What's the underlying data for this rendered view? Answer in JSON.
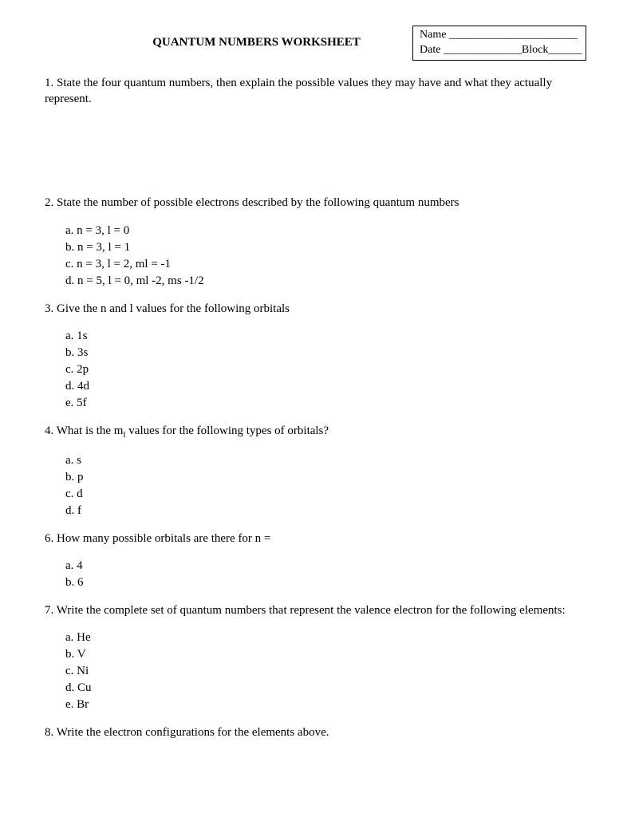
{
  "header": {
    "title": "QUANTUM NUMBERS WORKSHEET",
    "name_label": "Name _______________________",
    "date_label": "Date ______________Block______"
  },
  "q1": {
    "text": "1. State the four quantum numbers, then explain the possible values they may have and what they actually represent."
  },
  "q2": {
    "text": "2. State  the number of possible electrons described by the following quantum numbers",
    "a": "a. n = 3, l = 0",
    "b": "b. n = 3, l = 1",
    "c": "c. n = 3, l = 2, ml = -1",
    "d": "d. n = 5, l = 0, ml -2, ms -1/2"
  },
  "q3": {
    "text": "3. Give the n and l values for the following orbitals",
    "a": "a. 1s",
    "b": "b. 3s",
    "c": "c. 2p",
    "d": "d. 4d",
    "e": "e. 5f"
  },
  "q4": {
    "prefix": "4. What is the  m",
    "sub": "l",
    "suffix": " values for the following types of orbitals?",
    "a": "a. s",
    "b": "b. p",
    "c": "c. d",
    "d": "d. f"
  },
  "q6": {
    "text": "6. How many possible orbitals are there for n =",
    "a": "a. 4",
    "b": "b. 6"
  },
  "q7": {
    "text": "7. Write the complete set of quantum numbers that represent the valence electron for the following elements:",
    "a": "a. He",
    "b": "b. V",
    "c": "c. Ni",
    "d": "d. Cu",
    "e": "e. Br"
  },
  "q8": {
    "text": "8. Write the electron configurations for the elements above."
  }
}
